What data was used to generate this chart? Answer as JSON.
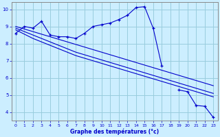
{
  "title": "Graphe des températures (°c)",
  "bg_color": "#cceeff",
  "grid_color": "#99ccdd",
  "line_color": "#0000cc",
  "spine_color": "#888888",
  "xlim": [
    -0.5,
    23.5
  ],
  "ylim": [
    3.5,
    10.4
  ],
  "xticks": [
    0,
    1,
    2,
    3,
    4,
    5,
    6,
    7,
    8,
    9,
    10,
    11,
    12,
    13,
    14,
    15,
    16,
    17,
    18,
    19,
    20,
    21,
    22,
    23
  ],
  "yticks": [
    4,
    5,
    6,
    7,
    8,
    9,
    10
  ],
  "hours": [
    0,
    1,
    2,
    3,
    4,
    5,
    6,
    7,
    8,
    9,
    10,
    11,
    12,
    13,
    14,
    15,
    16,
    17,
    18,
    19,
    20,
    21,
    22,
    23
  ],
  "line_main": [
    8.6,
    9.0,
    8.9,
    9.3,
    8.5,
    8.4,
    8.4,
    8.3,
    8.6,
    9.0,
    9.1,
    9.2,
    9.4,
    9.65,
    10.1,
    10.15,
    8.9,
    6.7,
    null,
    5.3,
    5.2,
    4.4,
    4.35,
    3.7
  ],
  "line_diag1": [
    9.0,
    8.85,
    8.7,
    8.55,
    8.4,
    8.25,
    8.1,
    7.95,
    7.8,
    7.65,
    7.5,
    7.35,
    7.2,
    7.05,
    6.9,
    6.75,
    6.6,
    6.45,
    6.3,
    6.15,
    6.0,
    5.85,
    5.7,
    5.55
  ],
  "line_diag2": [
    8.9,
    8.7,
    8.5,
    8.3,
    8.1,
    7.9,
    7.7,
    7.5,
    7.35,
    7.2,
    7.05,
    6.9,
    6.75,
    6.6,
    6.45,
    6.3,
    6.15,
    6.0,
    5.85,
    5.7,
    5.55,
    5.4,
    5.25,
    5.1
  ],
  "line_diag3": [
    8.8,
    8.55,
    8.3,
    8.1,
    7.9,
    7.7,
    7.5,
    7.3,
    7.15,
    7.0,
    6.85,
    6.7,
    6.55,
    6.4,
    6.25,
    6.1,
    5.95,
    5.8,
    5.65,
    5.5,
    5.35,
    5.2,
    5.05,
    4.9
  ],
  "line_short": [
    null,
    null,
    null,
    null,
    null,
    null,
    null,
    null,
    8.5,
    8.65,
    null,
    null,
    null,
    null,
    null,
    null,
    null,
    null,
    null,
    null,
    null,
    null,
    null,
    null
  ]
}
